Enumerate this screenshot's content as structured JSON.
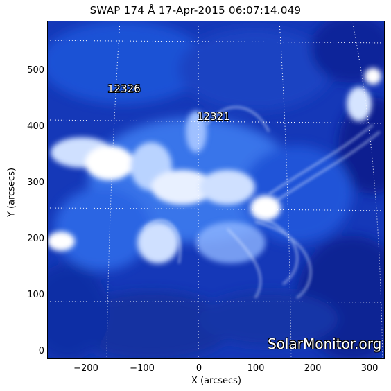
{
  "title": "SWAP 174 Å 17-Apr-2015 06:07:14.049",
  "axes": {
    "x_label": "X (arcsecs)",
    "y_label": "Y (arcsecs)",
    "x_ticks": [
      "−200",
      "−100",
      "0",
      "100",
      "200",
      "300"
    ],
    "y_ticks": [
      "500",
      "400",
      "300",
      "200",
      "100",
      "0"
    ]
  },
  "active_regions": [
    {
      "label": "12326"
    },
    {
      "label": "12321"
    }
  ],
  "watermark": "SolarMonitor.org",
  "colors": {
    "background": "#0a1f8a",
    "mid": "#1e56d8",
    "bright": "#ffffff",
    "grid": "#ffffff"
  }
}
